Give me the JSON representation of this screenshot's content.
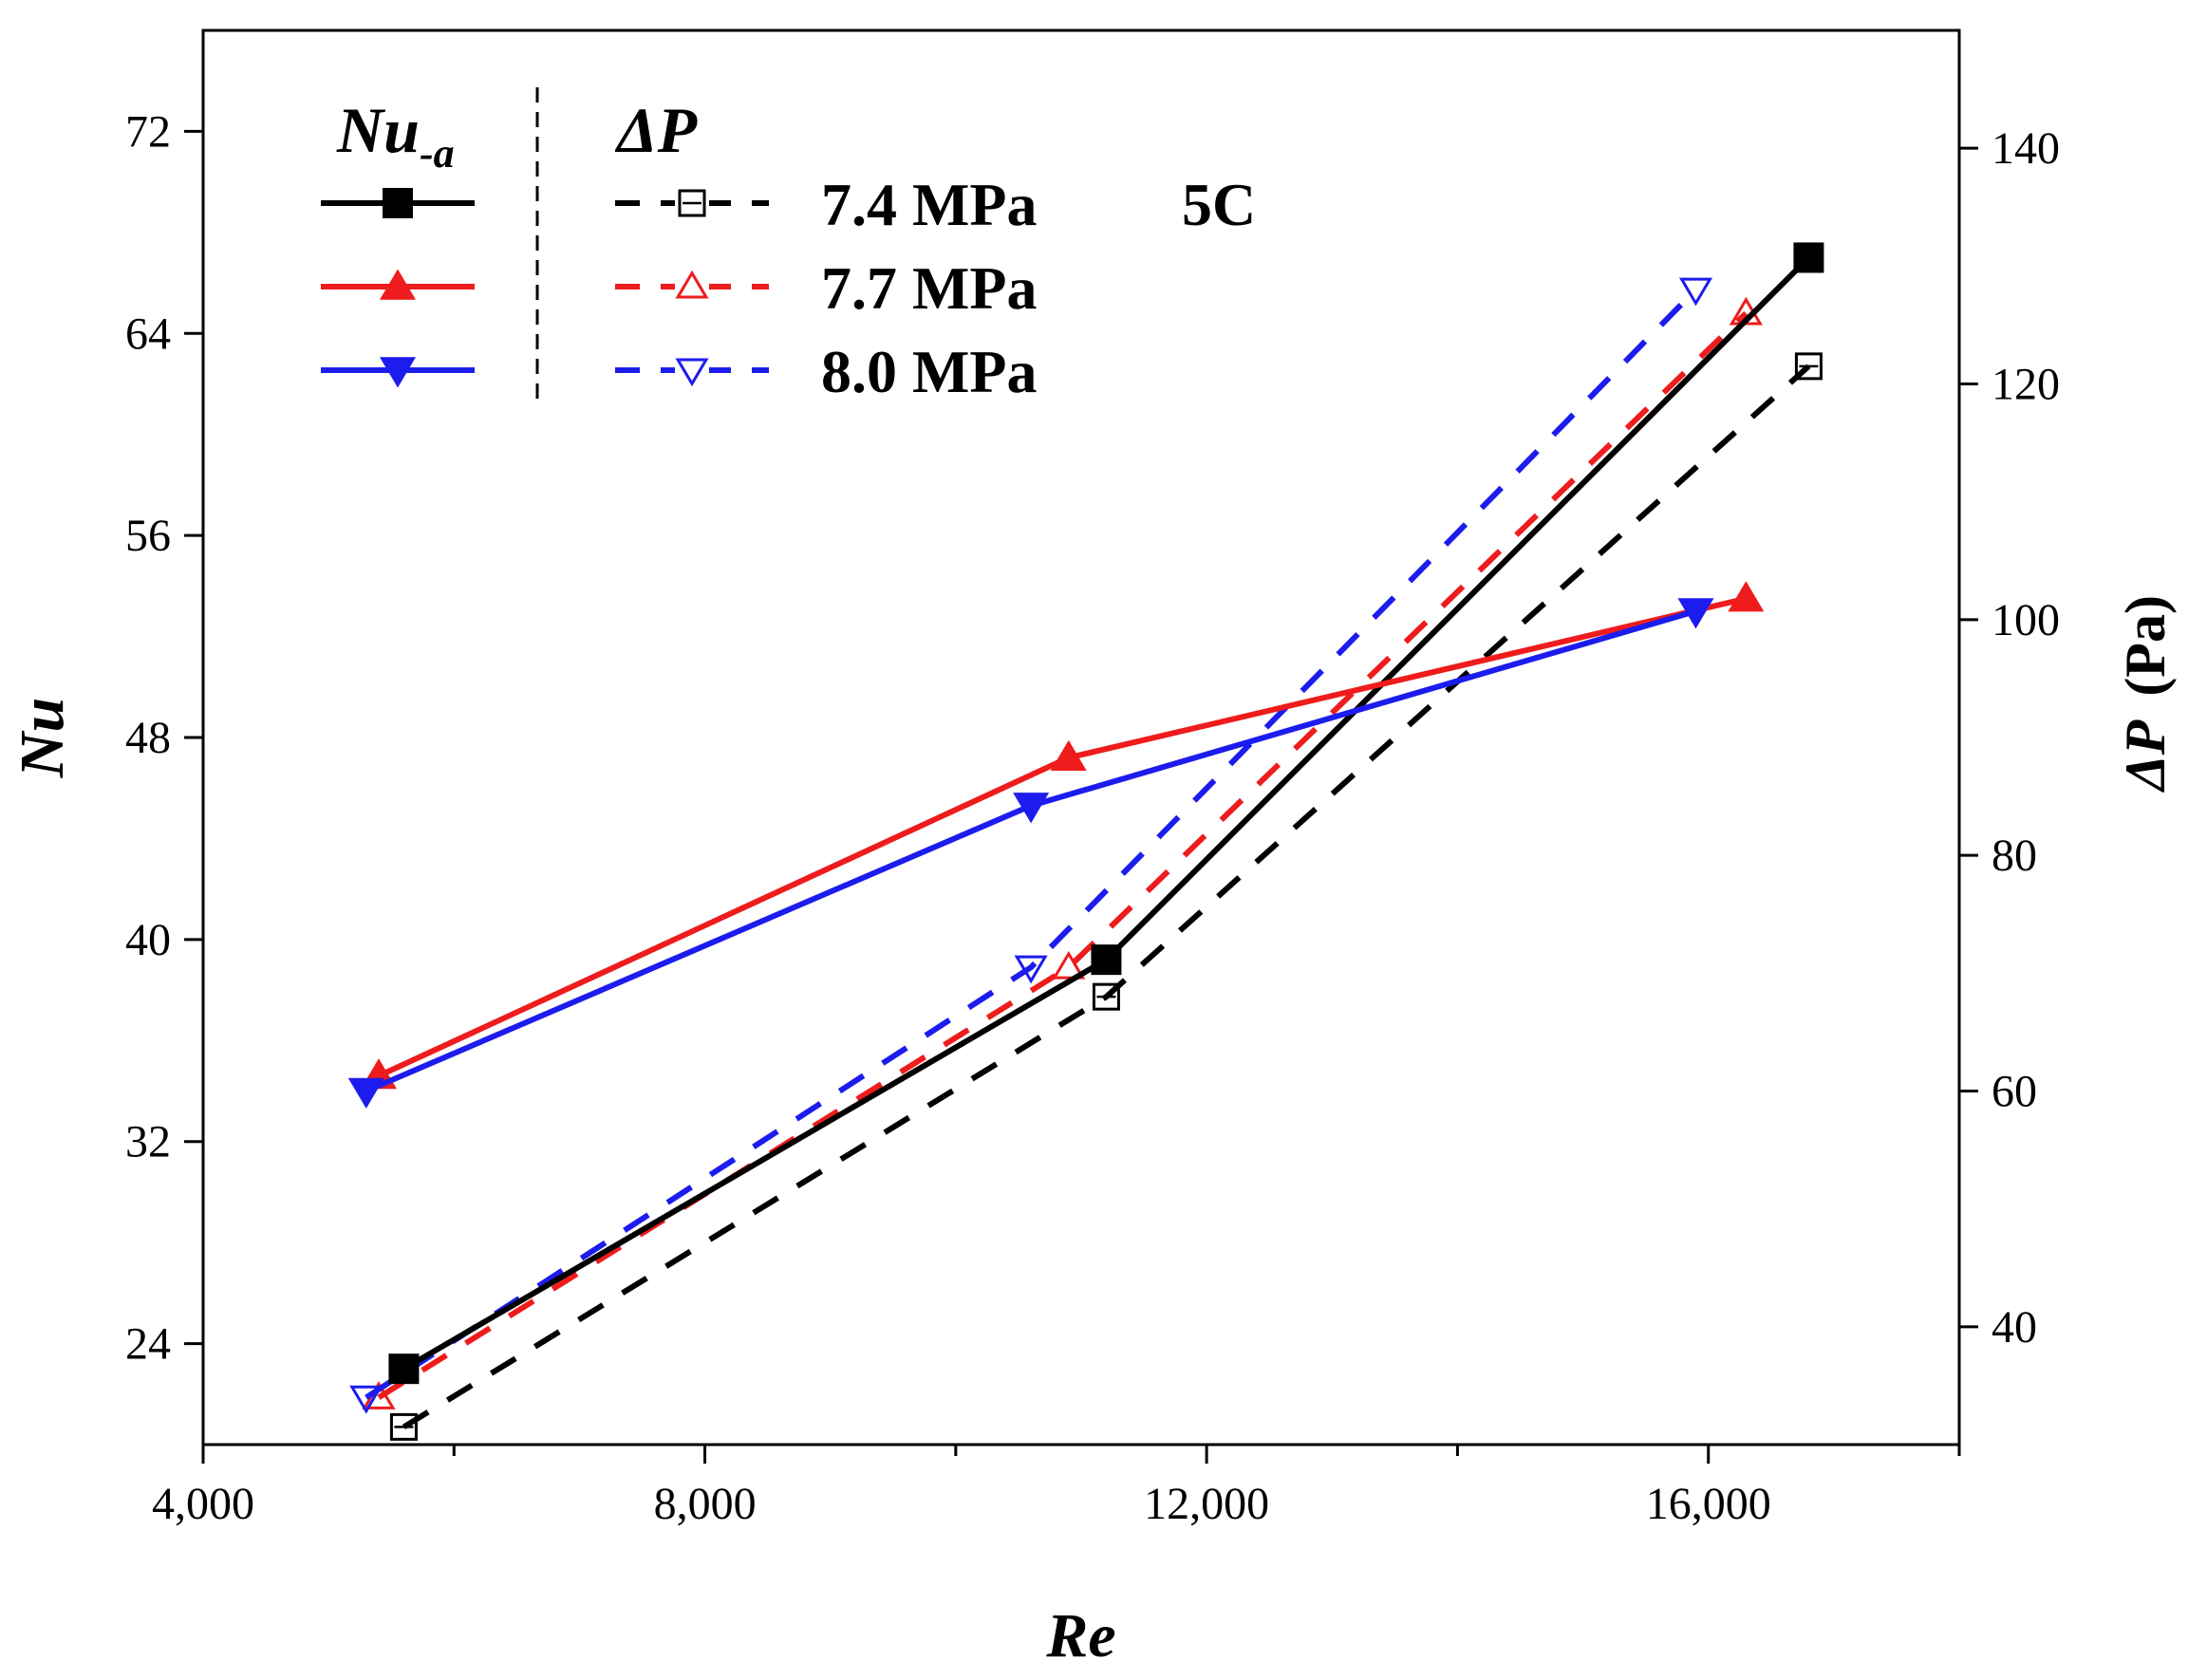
{
  "chart_data": {
    "type": "line",
    "annotation": "5C",
    "x": {
      "label": "Re",
      "range": [
        4000,
        18000
      ],
      "ticks": [
        4000,
        8000,
        12000,
        16000
      ],
      "tick_labels": [
        "4,000",
        "8,000",
        "12,000",
        "16,000"
      ],
      "minor_ticks": [
        6000,
        10000,
        14000,
        18000
      ]
    },
    "y_left": {
      "label": "Nu",
      "range": [
        20,
        76
      ],
      "ticks": [
        24,
        32,
        40,
        48,
        56,
        64,
        72
      ],
      "tick_labels": [
        "24",
        "32",
        "40",
        "48",
        "56",
        "64",
        "72"
      ]
    },
    "y_right": {
      "label_symbol": "ΔP",
      "label_unit": "(Pa)",
      "range": [
        30,
        150
      ],
      "ticks": [
        40,
        60,
        80,
        100,
        120,
        140
      ],
      "tick_labels": [
        "40",
        "60",
        "80",
        "100",
        "120",
        "140"
      ]
    },
    "legend": {
      "header_left_base": "Nu",
      "header_left_sub": "-a",
      "header_right": "ΔP",
      "labels": [
        "7.4 MPa",
        "7.7 MPa",
        "8.0 MPa"
      ]
    },
    "series": [
      {
        "name": "Nu 7.4 MPa",
        "axis": "left",
        "color": "#000000",
        "marker": "square",
        "filled": true,
        "dashed": false,
        "points": [
          [
            5600,
            23.0
          ],
          [
            11200,
            39.2
          ],
          [
            16800,
            67.0
          ]
        ]
      },
      {
        "name": "Nu 7.7 MPa",
        "axis": "left",
        "color": "#ee1c1c",
        "marker": "triangle-up",
        "filled": true,
        "dashed": false,
        "points": [
          [
            5400,
            34.6
          ],
          [
            10900,
            47.2
          ],
          [
            16300,
            53.5
          ]
        ]
      },
      {
        "name": "Nu 8.0 MPa",
        "axis": "left",
        "color": "#1c1cee",
        "marker": "triangle-down",
        "filled": true,
        "dashed": false,
        "points": [
          [
            5300,
            34.0
          ],
          [
            10600,
            45.3
          ],
          [
            15900,
            53.0
          ]
        ]
      },
      {
        "name": "ΔP 7.4 MPa",
        "axis": "right",
        "color": "#000000",
        "marker": "square",
        "filled": false,
        "dashed": true,
        "points": [
          [
            5600,
            31.5
          ],
          [
            11200,
            68.0
          ],
          [
            16800,
            121.5
          ]
        ]
      },
      {
        "name": "ΔP 7.7 MPa",
        "axis": "right",
        "color": "#ee1c1c",
        "marker": "triangle-up",
        "filled": false,
        "dashed": true,
        "points": [
          [
            5400,
            34.0
          ],
          [
            10900,
            70.5
          ],
          [
            16300,
            126.0
          ]
        ]
      },
      {
        "name": "ΔP 8.0 MPa",
        "axis": "right",
        "color": "#1c1cee",
        "marker": "triangle-down",
        "filled": false,
        "dashed": true,
        "points": [
          [
            5300,
            34.0
          ],
          [
            10600,
            70.5
          ],
          [
            15900,
            128.0
          ]
        ]
      }
    ]
  }
}
